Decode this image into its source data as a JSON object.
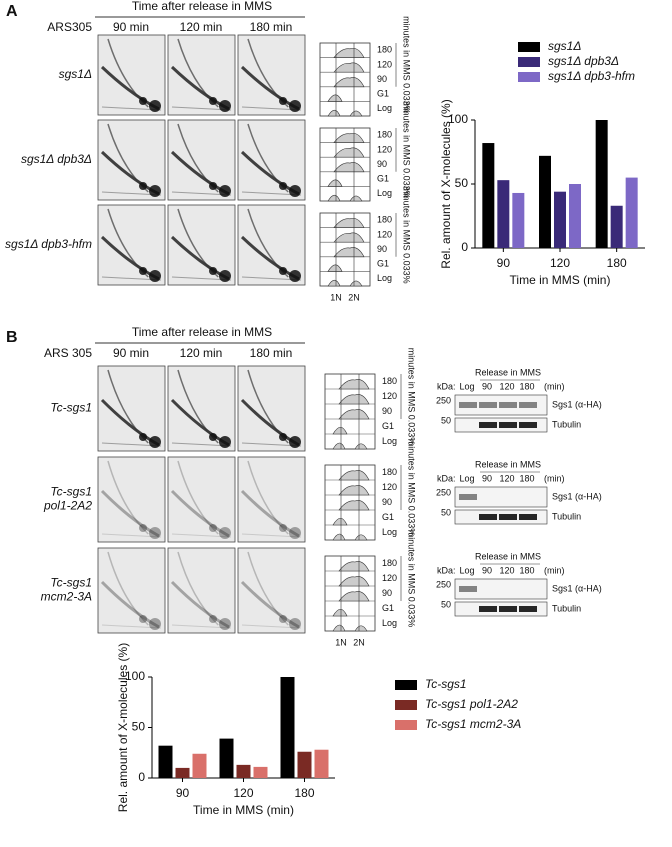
{
  "panel_a": {
    "label": "A",
    "header": "Time after release in MMS",
    "origin": "ARS305",
    "timepoints": [
      "90 min",
      "120 min",
      "180 min"
    ],
    "strains": [
      [
        "sgs1Δ"
      ],
      [
        "sgs1Δ dpb3Δ"
      ],
      [
        "sgs1Δ dpb3-hfm"
      ]
    ],
    "facs_labels": [
      "180",
      "120",
      "90",
      "G1",
      "Log"
    ],
    "facs_axis": "minutes in MMS 0.033%",
    "facs_x": [
      "1N",
      "2N"
    ]
  },
  "panel_b": {
    "label": "B",
    "header": "Time after release in MMS",
    "origin": "ARS 305",
    "timepoints": [
      "90 min",
      "120 min",
      "180 min"
    ],
    "strains": [
      [
        "Tc-sgs1"
      ],
      [
        "Tc-sgs1",
        "pol1-2A2"
      ],
      [
        "Tc-sgs1",
        "mcm2-3A"
      ]
    ],
    "facs_labels": [
      "180",
      "120",
      "90",
      "G1",
      "Log"
    ],
    "facs_axis": "minutes in MMS 0.033%",
    "facs_x": [
      "1N",
      "2N"
    ],
    "blot": {
      "title": "Release in MMS",
      "kda": "kDa:",
      "lanes": [
        "Log",
        "90",
        "120",
        "180"
      ],
      "unit": "(min)",
      "markers": [
        "250",
        "50"
      ],
      "bands": [
        "Sgs1 (α-HA)",
        "Tubulin"
      ]
    }
  },
  "chart_data": [
    {
      "type": "bar",
      "y_label": "Rel. amount of X-molecules (%)",
      "x_label": "Time in MMS (min)",
      "categories": [
        "90",
        "120",
        "180"
      ],
      "ylim": [
        0,
        100
      ],
      "yticks": [
        0,
        50,
        100
      ],
      "series": [
        {
          "name": "sgs1Δ",
          "color": "#000000",
          "values": [
            82,
            72,
            100
          ]
        },
        {
          "name": "sgs1Δ dpb3Δ",
          "color": "#3a2a78",
          "values": [
            53,
            44,
            33
          ]
        },
        {
          "name": "sgs1Δ dpb3-hfm",
          "color": "#7d68c6",
          "values": [
            43,
            50,
            55
          ]
        }
      ]
    },
    {
      "type": "bar",
      "y_label": "Rel. amount of X-molecules (%)",
      "x_label": "Time in MMS (min)",
      "categories": [
        "90",
        "120",
        "180"
      ],
      "ylim": [
        0,
        100
      ],
      "yticks": [
        0,
        50,
        100
      ],
      "series": [
        {
          "name": "Tc-sgs1",
          "color": "#000000",
          "values": [
            32,
            39,
            100
          ]
        },
        {
          "name": "Tc-sgs1 pol1-2A2",
          "color": "#7a2a24",
          "values": [
            10,
            13,
            26
          ]
        },
        {
          "name": "Tc-sgs1 mcm2-3A",
          "color": "#d9706a",
          "values": [
            24,
            11,
            28
          ]
        }
      ]
    }
  ]
}
